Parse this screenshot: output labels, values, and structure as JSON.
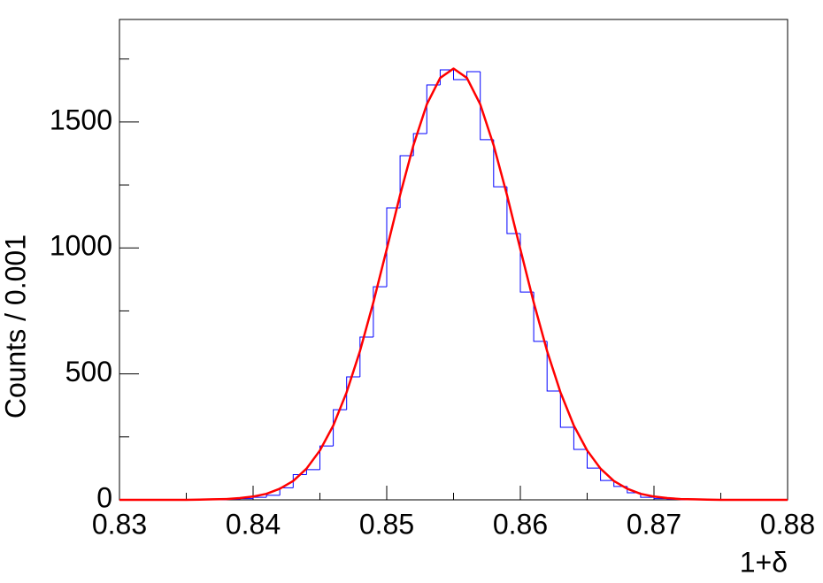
{
  "chart_data": {
    "type": "histogram",
    "xlabel": "1+δ",
    "ylabel": "Counts / 0.001",
    "bins": [
      0.83,
      0.831,
      0.832,
      0.833,
      0.834,
      0.835,
      0.836,
      0.837,
      0.838,
      0.839,
      0.84,
      0.841,
      0.842,
      0.843,
      0.844,
      0.845,
      0.846,
      0.847,
      0.848,
      0.849,
      0.85,
      0.851,
      0.852,
      0.853,
      0.854,
      0.855,
      0.856,
      0.857,
      0.858,
      0.859,
      0.86,
      0.861,
      0.862,
      0.863,
      0.864,
      0.865,
      0.866,
      0.867,
      0.868,
      0.869,
      0.87,
      0.871,
      0.872,
      0.873,
      0.874,
      0.875,
      0.876,
      0.877,
      0.878,
      0.879,
      0.88
    ],
    "values": [
      0,
      0,
      0,
      0,
      0,
      0,
      0,
      0,
      2,
      5,
      10,
      18,
      48,
      100,
      120,
      214,
      358,
      488,
      646,
      846,
      1159,
      1366,
      1454,
      1647,
      1707,
      1668,
      1700,
      1430,
      1243,
      1057,
      825,
      629,
      432,
      288,
      200,
      126,
      77,
      53,
      28,
      10,
      5,
      2,
      0,
      0,
      0,
      0,
      0,
      0,
      0,
      0
    ],
    "color": "#0000ff",
    "fit": {
      "type": "line",
      "color": "#ff0000",
      "x": [
        0.83,
        0.831,
        0.832,
        0.833,
        0.834,
        0.835,
        0.836,
        0.837,
        0.838,
        0.839,
        0.84,
        0.841,
        0.842,
        0.843,
        0.844,
        0.845,
        0.846,
        0.847,
        0.848,
        0.849,
        0.85,
        0.851,
        0.852,
        0.853,
        0.854,
        0.855,
        0.856,
        0.857,
        0.858,
        0.859,
        0.86,
        0.861,
        0.862,
        0.863,
        0.864,
        0.865,
        0.866,
        0.867,
        0.868,
        0.869,
        0.87,
        0.871,
        0.872,
        0.873,
        0.874,
        0.875,
        0.876,
        0.877,
        0.878,
        0.879,
        0.88
      ],
      "values": [
        0,
        0,
        0,
        0,
        0,
        0,
        1,
        2,
        3,
        7,
        13,
        24,
        44,
        75,
        124,
        196,
        295,
        427,
        591,
        784,
        995,
        1210,
        1408,
        1570,
        1675,
        1712,
        1675,
        1570,
        1408,
        1210,
        995,
        784,
        591,
        427,
        295,
        196,
        124,
        75,
        44,
        24,
        13,
        7,
        3,
        2,
        1,
        0,
        0,
        0,
        0,
        0,
        0
      ]
    },
    "xlim": [
      0.83,
      0.88
    ],
    "xticks": [
      0.83,
      0.84,
      0.85,
      0.86,
      0.87,
      0.88
    ],
    "xminorticks": [
      0.835,
      0.845,
      0.855,
      0.865,
      0.875
    ],
    "ylim": [
      0,
      1907
    ],
    "yticks": [
      0,
      500,
      1000,
      1500
    ],
    "yminorticks": [
      250,
      750,
      1250,
      1750
    ]
  }
}
